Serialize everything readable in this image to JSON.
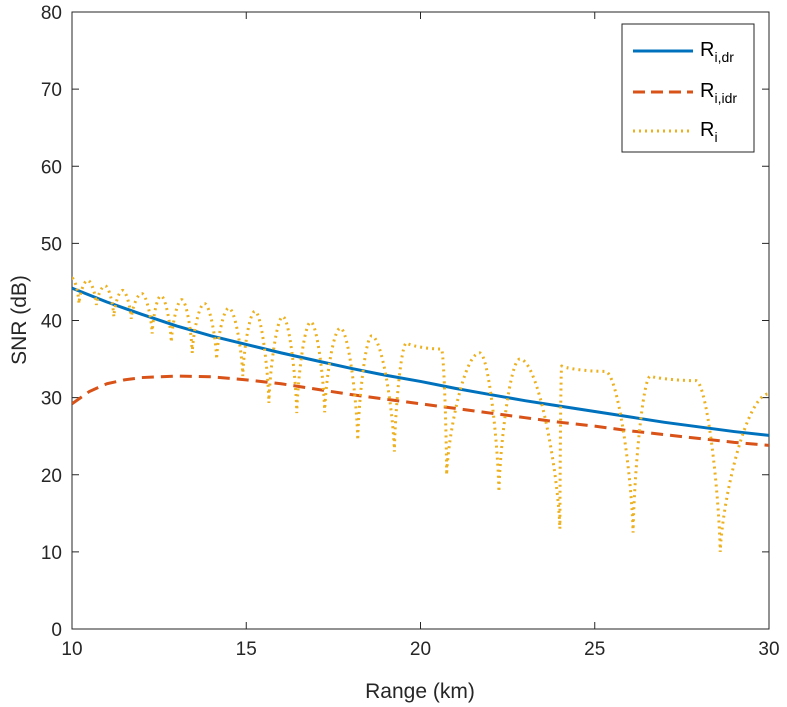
{
  "chart_data": {
    "type": "line",
    "title": "",
    "xlabel": "Range (km)",
    "ylabel": "SNR (dB)",
    "xlim": [
      10,
      30
    ],
    "ylim": [
      0,
      80
    ],
    "xticks": [
      "10",
      "15",
      "20",
      "25",
      "30"
    ],
    "yticks": [
      "0",
      "10",
      "20",
      "30",
      "40",
      "50",
      "60",
      "70",
      "80"
    ],
    "grid": false,
    "legend_position": "top-right",
    "series": [
      {
        "name_main": "R",
        "name_sub": "i,dr",
        "color": "#0072BD",
        "style": "solid",
        "x": [
          10,
          11,
          12,
          13,
          14,
          15,
          16,
          17,
          18,
          19,
          20,
          21,
          22,
          23,
          24,
          25,
          26,
          27,
          28,
          29,
          30
        ],
        "y": [
          44.2,
          42.4,
          40.8,
          39.3,
          38.0,
          36.9,
          35.8,
          34.8,
          33.8,
          32.9,
          32.1,
          31.2,
          30.4,
          29.6,
          28.9,
          28.2,
          27.5,
          26.8,
          26.2,
          25.6,
          25.1
        ]
      },
      {
        "name_main": "R",
        "name_sub": "i,idr",
        "color": "#D95319",
        "style": "dashed",
        "x": [
          10,
          10.5,
          11,
          11.5,
          12,
          12.5,
          13,
          14,
          15,
          16,
          17,
          18,
          19,
          20,
          21,
          22,
          23,
          24,
          25,
          26,
          27,
          28,
          29,
          30
        ],
        "y": [
          29.2,
          30.8,
          31.8,
          32.3,
          32.6,
          32.7,
          32.8,
          32.7,
          32.3,
          31.8,
          31.1,
          30.4,
          29.8,
          29.2,
          28.6,
          28.0,
          27.4,
          26.8,
          26.3,
          25.7,
          25.2,
          24.7,
          24.2,
          23.8
        ]
      },
      {
        "name_main": "R",
        "name_sub": "i",
        "color": "#EDB120",
        "style": "dotted",
        "peaks_x": [
          10,
          10.45,
          10.95,
          11.45,
          12.0,
          12.55,
          13.15,
          13.8,
          14.5,
          15.25,
          16.05,
          16.85,
          17.7,
          18.6,
          19.6,
          20.6,
          21.7,
          22.85,
          24.05,
          25.3,
          26.6,
          27.9,
          30
        ],
        "peaks_y": [
          45.5,
          45.2,
          44.5,
          43.9,
          43.5,
          43.2,
          42.7,
          42.2,
          41.6,
          41.2,
          40.5,
          39.8,
          39.0,
          38.0,
          37.1,
          36.3,
          35.8,
          35.0,
          34.1,
          33.4,
          32.8,
          32.2,
          30.5
        ],
        "troughs_x": [
          10.2,
          10.7,
          11.2,
          11.7,
          12.3,
          12.85,
          13.45,
          14.15,
          14.9,
          15.65,
          16.45,
          17.25,
          18.2,
          19.25,
          20.75,
          22.25,
          24.0,
          26.1,
          28.6
        ],
        "troughs_y": [
          42.2,
          42.0,
          40.5,
          40.2,
          38.3,
          37.2,
          35.8,
          35.0,
          32.8,
          29.3,
          28.0,
          28.1,
          24.5,
          23.0,
          20.0,
          17.8,
          13.0,
          12.5,
          10.0
        ]
      }
    ]
  }
}
